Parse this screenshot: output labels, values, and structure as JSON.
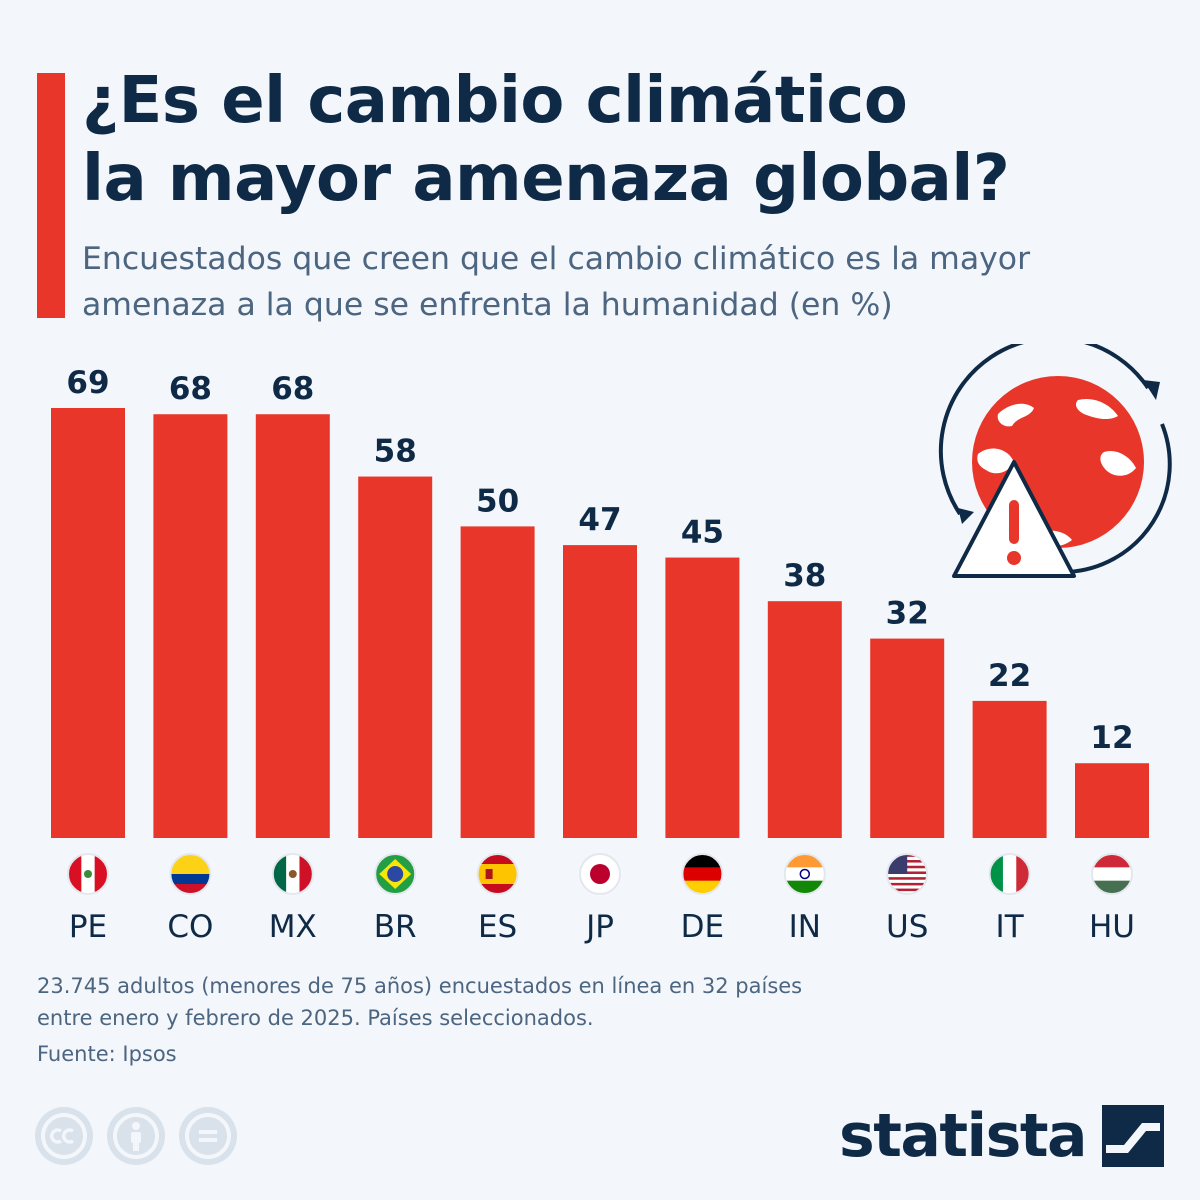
{
  "header": {
    "title_line1": "¿Es el cambio climático",
    "title_line2": "la mayor amenaza global?",
    "subtitle_line1": "Encuestados que creen que el cambio climático es la mayor",
    "subtitle_line2": "amenaza a la que se enfrenta la humanidad (en %)"
  },
  "chart_data": {
    "type": "bar",
    "title": "¿Es el cambio climático la mayor amenaza global?",
    "subtitle": "Encuestados que creen que el cambio climático es la mayor amenaza a la que se enfrenta la humanidad (en %)",
    "categories": [
      "PE",
      "CO",
      "MX",
      "BR",
      "ES",
      "JP",
      "DE",
      "IN",
      "US",
      "IT",
      "HU"
    ],
    "values": [
      69,
      68,
      68,
      58,
      50,
      47,
      45,
      38,
      32,
      22,
      12
    ],
    "ylim": [
      0,
      69
    ],
    "grid": false,
    "legend": "none",
    "bar_color": "#e8372a"
  },
  "flags": [
    "peru-flag-icon",
    "colombia-flag-icon",
    "mexico-flag-icon",
    "brazil-flag-icon",
    "spain-flag-icon",
    "japan-flag-icon",
    "germany-flag-icon",
    "india-flag-icon",
    "usa-flag-icon",
    "italy-flag-icon",
    "hungary-flag-icon"
  ],
  "footer": {
    "note_line1": "23.745 adultos (menores de 75 años) encuestados en línea en 32 países",
    "note_line2": "entre enero y febrero de 2025. Países seleccionados.",
    "source": "Fuente: Ipsos",
    "brand": "statista"
  },
  "icons": {
    "illustration": "globe-warning-icon",
    "license": [
      "cc-icon",
      "attribution-icon",
      "no-derivatives-icon"
    ],
    "brand_mark": "statista-logo-icon"
  },
  "colors": {
    "accent": "#e8372a",
    "navy": "#0f2a46",
    "text_muted": "#4c6580",
    "background": "#f3f6fa"
  }
}
